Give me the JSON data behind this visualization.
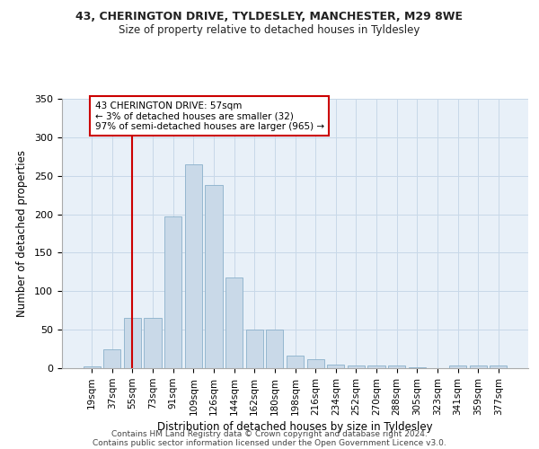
{
  "title1": "43, CHERINGTON DRIVE, TYLDESLEY, MANCHESTER, M29 8WE",
  "title2": "Size of property relative to detached houses in Tyldesley",
  "xlabel": "Distribution of detached houses by size in Tyldesley",
  "ylabel": "Number of detached properties",
  "bar_labels": [
    "19sqm",
    "37sqm",
    "55sqm",
    "73sqm",
    "91sqm",
    "109sqm",
    "126sqm",
    "144sqm",
    "162sqm",
    "180sqm",
    "198sqm",
    "216sqm",
    "234sqm",
    "252sqm",
    "270sqm",
    "288sqm",
    "305sqm",
    "323sqm",
    "341sqm",
    "359sqm",
    "377sqm"
  ],
  "bar_values": [
    2,
    25,
    65,
    65,
    197,
    265,
    238,
    118,
    50,
    50,
    16,
    12,
    5,
    4,
    4,
    4,
    1,
    0,
    4,
    3,
    3
  ],
  "bar_color": "#c9d9e8",
  "bar_edgecolor": "#8ab0cb",
  "highlight_index": 2,
  "highlight_color": "#cc0000",
  "annotation_text": "43 CHERINGTON DRIVE: 57sqm\n← 3% of detached houses are smaller (32)\n97% of semi-detached houses are larger (965) →",
  "annotation_box_color": "#ffffff",
  "annotation_box_edgecolor": "#cc0000",
  "ylim": [
    0,
    350
  ],
  "yticks": [
    0,
    50,
    100,
    150,
    200,
    250,
    300,
    350
  ],
  "footer1": "Contains HM Land Registry data © Crown copyright and database right 2024.",
  "footer2": "Contains public sector information licensed under the Open Government Licence v3.0.",
  "background_color": "#ffffff",
  "plot_bg_color": "#e8f0f8",
  "grid_color": "#c8d8e8"
}
